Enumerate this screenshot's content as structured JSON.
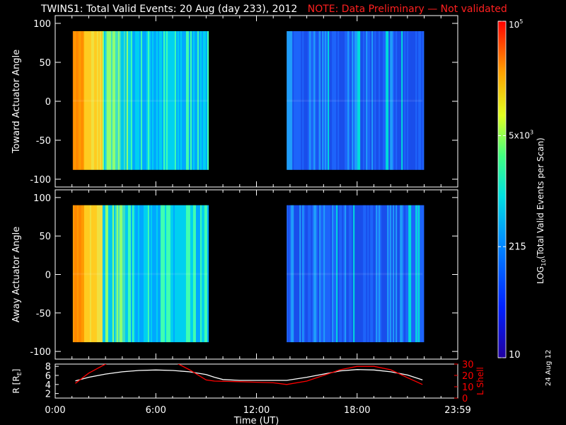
{
  "title": {
    "main": "TWINS1: Total Valid Events: 20 Aug (day 233), 2012",
    "note": "NOTE: Data Preliminary — Not validated"
  },
  "stamp": "24 Aug 12",
  "colors": {
    "background": "#000000",
    "axes": "#ffffff",
    "note": "#ff2020",
    "lshell": "#ff0000",
    "radius": "#ffffff"
  },
  "chart_data": [
    {
      "type": "heatmap",
      "panel": "toward",
      "ylabel": "Toward Actuator Angle",
      "xlim": [
        0,
        24
      ],
      "ylim": [
        -110,
        110
      ],
      "yticks": [
        100,
        50,
        0,
        -50,
        -100
      ],
      "data_y_range": [
        -88,
        90
      ],
      "segments": [
        {
          "x0": 1.05,
          "x1": 9.1,
          "profile": "orange-to-cyan"
        },
        {
          "x0": 13.8,
          "x1": 21.9,
          "profile": "blue"
        }
      ]
    },
    {
      "type": "heatmap",
      "panel": "away",
      "ylabel": "Away Actuator Angle",
      "xlim": [
        0,
        24
      ],
      "ylim": [
        -110,
        110
      ],
      "yticks": [
        100,
        50,
        0,
        -50,
        -100
      ],
      "data_y_range": [
        -88,
        90
      ],
      "segments": [
        {
          "x0": 1.05,
          "x1": 9.1,
          "profile": "orange-to-cyan"
        },
        {
          "x0": 13.8,
          "x1": 21.9,
          "profile": "blue"
        }
      ]
    },
    {
      "type": "line",
      "panel": "orbit",
      "xlabel": "Time (UT)",
      "xlim": [
        0,
        24
      ],
      "xticks": [
        "0:00",
        "6:00",
        "12:00",
        "18:00",
        "23:59"
      ],
      "left_axis": {
        "label": "R [R",
        "label_sub": "E",
        "label_end": "]",
        "ylim": [
          1,
          8.5
        ],
        "yticks": [
          2,
          4,
          6,
          8
        ]
      },
      "right_axis": {
        "label": "L Shell",
        "ylim": [
          0,
          30
        ],
        "yticks": [
          0,
          10,
          20,
          30
        ]
      },
      "series": [
        {
          "name": "R [RE]",
          "axis": "left",
          "x": [
            1.2,
            2,
            3,
            4,
            5,
            6,
            7,
            8,
            9,
            9.5,
            10,
            11,
            12,
            13,
            13.8,
            15,
            16,
            17,
            18,
            19,
            20,
            21,
            21.9
          ],
          "y": [
            4.8,
            5.6,
            6.3,
            6.8,
            7.1,
            7.2,
            7.1,
            6.8,
            6.2,
            5.6,
            5.1,
            4.9,
            4.9,
            4.9,
            4.9,
            5.6,
            6.3,
            7.0,
            7.3,
            7.2,
            6.8,
            6.1,
            5.0
          ]
        },
        {
          "name": "L Shell",
          "axis": "right",
          "x": [
            1.2,
            2,
            3,
            3.3,
            7.1,
            8,
            9,
            9.5,
            11,
            12,
            13,
            13.8,
            15,
            16,
            17,
            18,
            19,
            20,
            21,
            21.9
          ],
          "y": [
            13,
            22,
            30,
            32,
            32,
            25,
            16,
            15,
            14.5,
            14,
            13.5,
            12,
            15,
            20,
            25,
            28,
            28,
            25,
            18,
            12
          ]
        }
      ]
    }
  ],
  "colorbar": {
    "label_main": "LOG",
    "label_sub": "10",
    "label_rest": "(Total Valid Events per Scan)",
    "ticks": [
      {
        "text": "10",
        "sup": "5",
        "frac": 1.0
      },
      {
        "text": "5x10",
        "sup": "3",
        "frac": 0.66
      },
      {
        "text": "215",
        "sup": "",
        "frac": 0.33
      },
      {
        "text": "10",
        "sup": "",
        "frac": 0.0
      }
    ]
  }
}
